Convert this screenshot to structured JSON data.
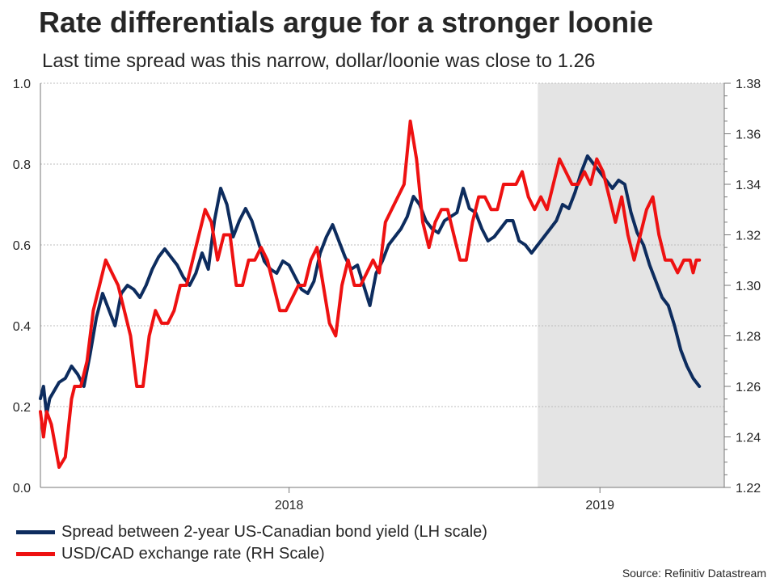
{
  "title": "Rate differentials argue for a stronger loonie",
  "subtitle": "Last time spread was this narrow, dollar/loonie was close to 1.26",
  "source": "Source: Refinitiv Datastream",
  "colors": {
    "series_spread": "#0d2c5e",
    "series_usdcad": "#ee1111",
    "shade": "#e4e4e4",
    "grid": "#bcbcbc",
    "axis": "#777777",
    "text": "#262626"
  },
  "chart_data": {
    "type": "line",
    "title": "Rate differentials argue for a stronger loonie",
    "x_range": [
      2017.2,
      2019.4
    ],
    "x_ticks": [
      {
        "value": 2018.0,
        "label": "2018"
      },
      {
        "value": 2019.0,
        "label": "2019"
      }
    ],
    "y_left": {
      "label": "LH scale",
      "lim": [
        0.0,
        1.0
      ],
      "ticks": [
        "0.0",
        "0.2",
        "0.4",
        "0.6",
        "0.8",
        "1.0"
      ]
    },
    "y_right": {
      "label": "RH Scale",
      "lim": [
        1.22,
        1.38
      ],
      "ticks": [
        "1.22",
        "1.24",
        "1.26",
        "1.28",
        "1.30",
        "1.32",
        "1.34",
        "1.36",
        "1.38"
      ]
    },
    "grid": "horizontal dotted",
    "shaded_region": [
      2018.8,
      2019.4
    ],
    "legend_position": "bottom-left",
    "series": [
      {
        "name": "Spread between 2-year US-Canadian bond yield (LH scale)",
        "axis": "left",
        "x": [
          2017.2,
          2017.21,
          2017.22,
          2017.23,
          2017.245,
          2017.26,
          2017.28,
          2017.3,
          2017.32,
          2017.34,
          2017.36,
          2017.38,
          2017.4,
          2017.42,
          2017.44,
          2017.46,
          2017.48,
          2017.5,
          2017.52,
          2017.54,
          2017.56,
          2017.58,
          2017.6,
          2017.62,
          2017.64,
          2017.66,
          2017.68,
          2017.7,
          2017.72,
          2017.74,
          2017.76,
          2017.78,
          2017.8,
          2017.82,
          2017.84,
          2017.86,
          2017.88,
          2017.9,
          2017.92,
          2017.94,
          2017.96,
          2017.98,
          2018.0,
          2018.02,
          2018.04,
          2018.06,
          2018.08,
          2018.1,
          2018.12,
          2018.14,
          2018.16,
          2018.18,
          2018.2,
          2018.22,
          2018.24,
          2018.26,
          2018.28,
          2018.3,
          2018.32,
          2018.34,
          2018.36,
          2018.38,
          2018.4,
          2018.42,
          2018.44,
          2018.46,
          2018.48,
          2018.5,
          2018.52,
          2018.54,
          2018.56,
          2018.58,
          2018.6,
          2018.62,
          2018.64,
          2018.66,
          2018.68,
          2018.7,
          2018.72,
          2018.74,
          2018.76,
          2018.78,
          2018.8,
          2018.82,
          2018.84,
          2018.86,
          2018.88,
          2018.9,
          2018.92,
          2018.94,
          2018.96,
          2018.98,
          2019.0,
          2019.02,
          2019.04,
          2019.06,
          2019.08,
          2019.1,
          2019.12,
          2019.14,
          2019.16,
          2019.18,
          2019.2,
          2019.22,
          2019.24,
          2019.26,
          2019.28,
          2019.3,
          2019.32
        ],
        "values": [
          0.22,
          0.25,
          0.18,
          0.22,
          0.24,
          0.26,
          0.27,
          0.3,
          0.28,
          0.25,
          0.33,
          0.42,
          0.48,
          0.44,
          0.4,
          0.48,
          0.5,
          0.49,
          0.47,
          0.5,
          0.54,
          0.57,
          0.59,
          0.57,
          0.55,
          0.52,
          0.5,
          0.53,
          0.58,
          0.54,
          0.66,
          0.74,
          0.7,
          0.62,
          0.66,
          0.69,
          0.66,
          0.61,
          0.56,
          0.54,
          0.53,
          0.56,
          0.55,
          0.52,
          0.49,
          0.48,
          0.51,
          0.58,
          0.62,
          0.65,
          0.61,
          0.57,
          0.54,
          0.55,
          0.5,
          0.45,
          0.53,
          0.56,
          0.6,
          0.62,
          0.64,
          0.67,
          0.72,
          0.7,
          0.66,
          0.64,
          0.63,
          0.66,
          0.67,
          0.68,
          0.74,
          0.69,
          0.68,
          0.64,
          0.61,
          0.62,
          0.64,
          0.66,
          0.66,
          0.61,
          0.6,
          0.58,
          0.6,
          0.62,
          0.64,
          0.66,
          0.7,
          0.69,
          0.73,
          0.78,
          0.82,
          0.8,
          0.78,
          0.76,
          0.74,
          0.76,
          0.75,
          0.68,
          0.63,
          0.6,
          0.55,
          0.51,
          0.47,
          0.45,
          0.4,
          0.34,
          0.3,
          0.27,
          0.25
        ]
      },
      {
        "name": "USD/CAD exchange rate (RH Scale)",
        "axis": "right",
        "x": [
          2017.2,
          2017.21,
          2017.22,
          2017.235,
          2017.25,
          2017.26,
          2017.28,
          2017.3,
          2017.31,
          2017.33,
          2017.35,
          2017.37,
          2017.39,
          2017.41,
          2017.43,
          2017.45,
          2017.47,
          2017.49,
          2017.51,
          2017.53,
          2017.55,
          2017.57,
          2017.59,
          2017.61,
          2017.63,
          2017.65,
          2017.67,
          2017.69,
          2017.71,
          2017.73,
          2017.75,
          2017.77,
          2017.79,
          2017.81,
          2017.83,
          2017.85,
          2017.87,
          2017.89,
          2017.91,
          2017.93,
          2017.95,
          2017.97,
          2017.99,
          2018.01,
          2018.03,
          2018.05,
          2018.07,
          2018.09,
          2018.11,
          2018.13,
          2018.15,
          2018.17,
          2018.19,
          2018.21,
          2018.23,
          2018.25,
          2018.27,
          2018.29,
          2018.31,
          2018.33,
          2018.35,
          2018.37,
          2018.39,
          2018.41,
          2018.43,
          2018.45,
          2018.47,
          2018.49,
          2018.51,
          2018.53,
          2018.55,
          2018.57,
          2018.59,
          2018.61,
          2018.63,
          2018.65,
          2018.67,
          2018.69,
          2018.71,
          2018.73,
          2018.75,
          2018.77,
          2018.79,
          2018.81,
          2018.83,
          2018.85,
          2018.87,
          2018.89,
          2018.91,
          2018.93,
          2018.95,
          2018.97,
          2018.99,
          2019.01,
          2019.03,
          2019.05,
          2019.07,
          2019.09,
          2019.11,
          2019.13,
          2019.15,
          2019.17,
          2019.19,
          2019.21,
          2019.23,
          2019.25,
          2019.27,
          2019.29,
          2019.3,
          2019.31,
          2019.32
        ],
        "values": [
          1.25,
          1.24,
          1.25,
          1.245,
          1.235,
          1.228,
          1.232,
          1.255,
          1.26,
          1.26,
          1.27,
          1.29,
          1.3,
          1.31,
          1.305,
          1.3,
          1.29,
          1.28,
          1.26,
          1.26,
          1.28,
          1.29,
          1.285,
          1.285,
          1.29,
          1.3,
          1.3,
          1.31,
          1.32,
          1.33,
          1.325,
          1.31,
          1.32,
          1.32,
          1.3,
          1.3,
          1.31,
          1.31,
          1.315,
          1.31,
          1.3,
          1.29,
          1.29,
          1.295,
          1.3,
          1.3,
          1.31,
          1.315,
          1.3,
          1.285,
          1.28,
          1.3,
          1.31,
          1.3,
          1.3,
          1.305,
          1.31,
          1.305,
          1.325,
          1.33,
          1.335,
          1.34,
          1.365,
          1.35,
          1.325,
          1.315,
          1.325,
          1.33,
          1.33,
          1.32,
          1.31,
          1.31,
          1.325,
          1.335,
          1.335,
          1.33,
          1.33,
          1.34,
          1.34,
          1.34,
          1.345,
          1.335,
          1.33,
          1.335,
          1.33,
          1.34,
          1.35,
          1.345,
          1.34,
          1.34,
          1.345,
          1.34,
          1.35,
          1.345,
          1.335,
          1.325,
          1.335,
          1.32,
          1.31,
          1.32,
          1.33,
          1.335,
          1.32,
          1.31,
          1.31,
          1.305,
          1.31,
          1.31,
          1.305,
          1.31,
          1.31
        ]
      }
    ]
  }
}
